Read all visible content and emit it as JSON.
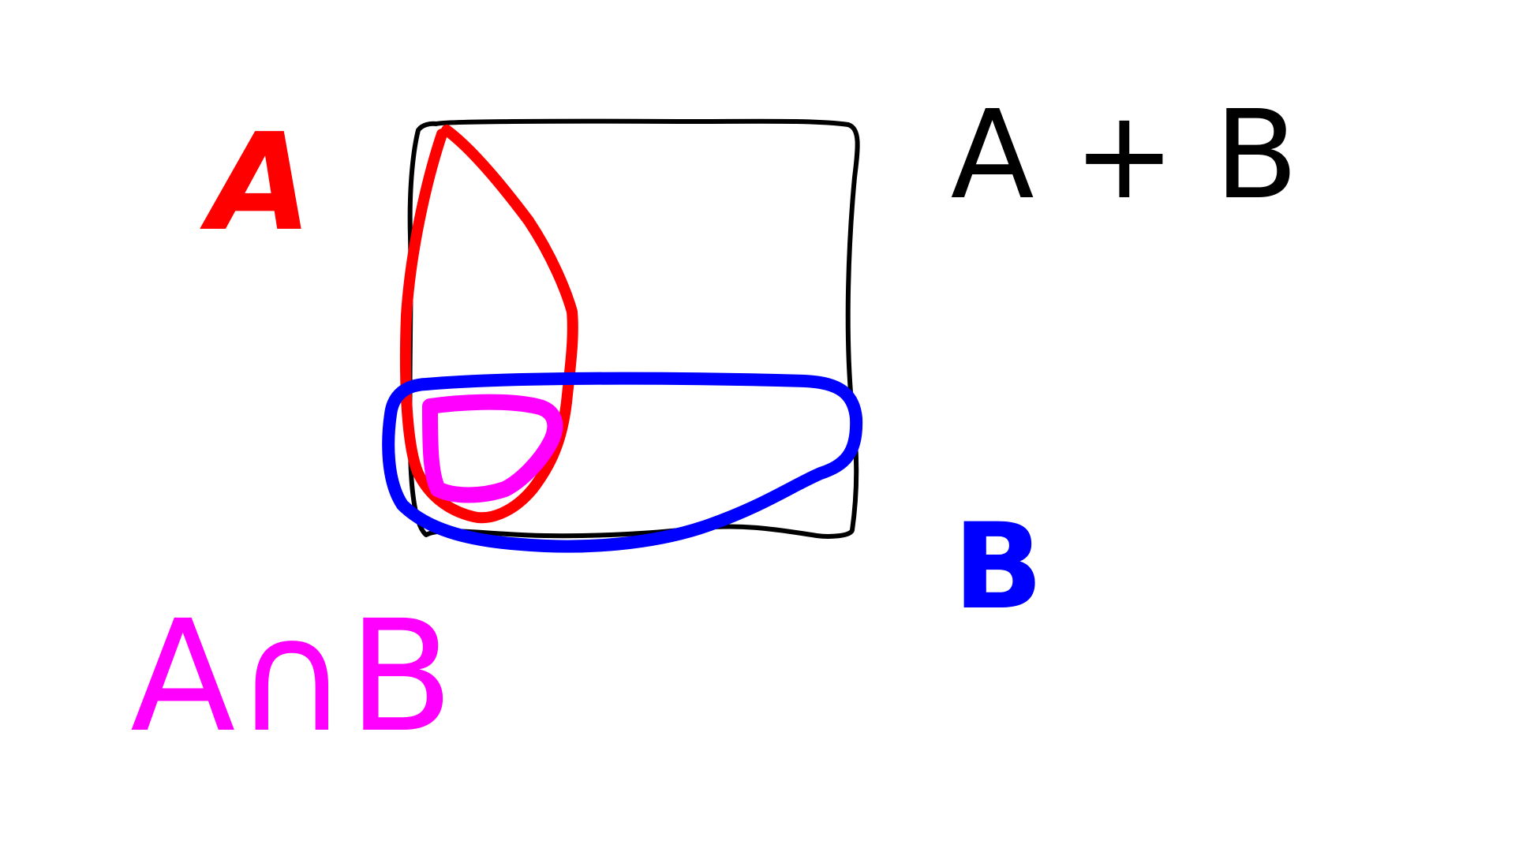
{
  "labels": {
    "set_a": "A",
    "set_b": "B",
    "union": "A + B",
    "intersection": "A∩B"
  },
  "colors": {
    "background": "#ffffff",
    "universe_box": "#000000",
    "set_a": "#ff0000",
    "set_b": "#0000ff",
    "intersection": "#ff00ff"
  }
}
